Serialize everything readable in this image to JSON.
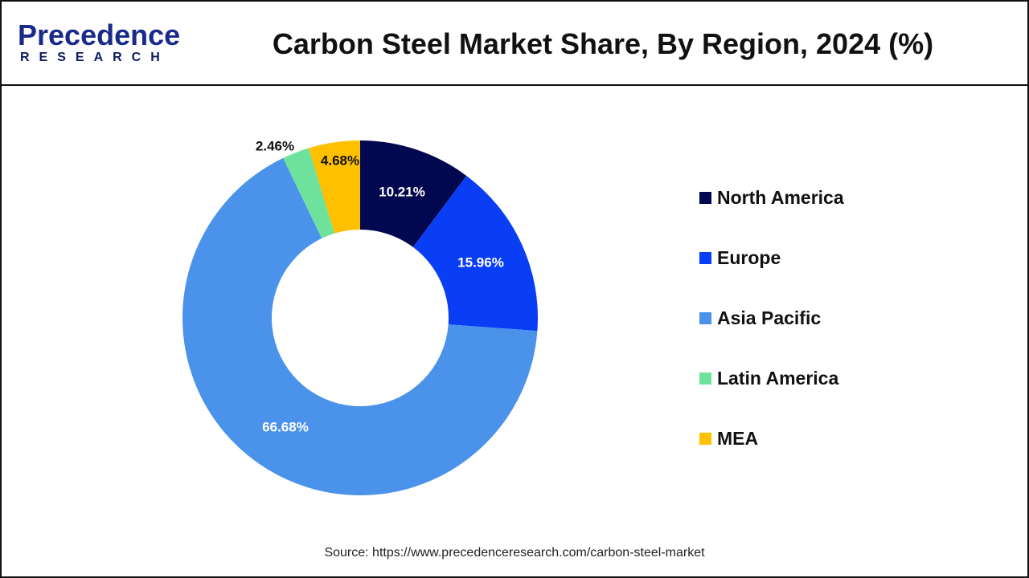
{
  "logo": {
    "line1": "Precedence",
    "line2": "RESEARCH"
  },
  "chart_data": {
    "type": "pie",
    "donut": true,
    "title": "Carbon Steel Market Share, By Region, 2024 (%)",
    "categories": [
      "North America",
      "Europe",
      "Asia Pacific",
      "Latin America",
      "MEA"
    ],
    "values": [
      10.21,
      15.96,
      66.68,
      2.46,
      4.68
    ],
    "labels": [
      "10.21%",
      "15.96%",
      "66.68%",
      "2.46%",
      "4.68%"
    ],
    "colors": [
      "#01084f",
      "#0a3ef5",
      "#4a92ea",
      "#6ee29c",
      "#ffc000"
    ],
    "legend": "right"
  },
  "source": "Source: https://www.precedenceresearch.com/carbon-steel-market"
}
